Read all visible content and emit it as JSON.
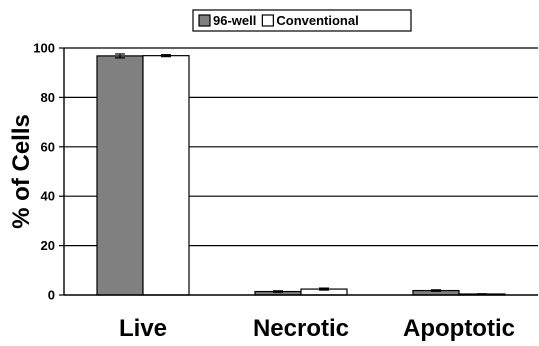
{
  "chart_data": {
    "type": "bar",
    "categories": [
      "Live",
      "Necrotic",
      "Apoptotic"
    ],
    "series": [
      {
        "name": "96-well",
        "values": [
          96.8,
          1.4,
          1.8
        ],
        "errors": [
          0.8,
          0.3,
          0.3
        ],
        "color": "#808080"
      },
      {
        "name": "Conventional",
        "values": [
          96.9,
          2.4,
          0.4
        ],
        "errors": [
          0.4,
          0.4,
          0.1
        ],
        "color": "#ffffff"
      }
    ],
    "ylabel": "% of Cells",
    "ylim": [
      0,
      100
    ],
    "yticks": [
      0,
      20,
      40,
      60,
      80,
      100
    ],
    "grid": true,
    "legend": "top"
  }
}
